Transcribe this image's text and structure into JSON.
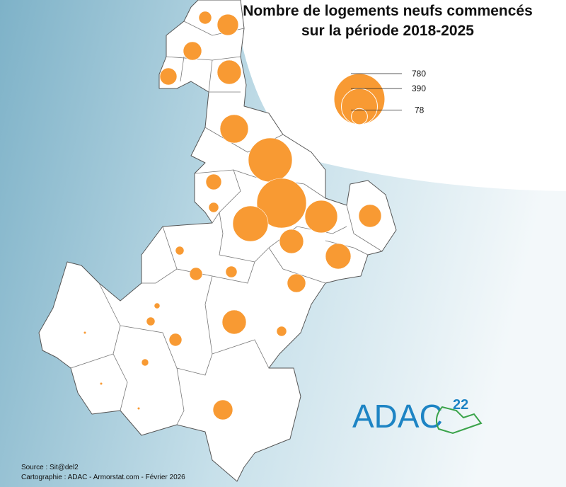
{
  "title_lines": [
    "Nombre de logements neufs commencés",
    "sur la période 2018-2025"
  ],
  "legend": {
    "values": [
      780,
      390,
      78
    ]
  },
  "circles": {
    "color": "#f89a33",
    "values": [
      49,
      135,
      102,
      87,
      174,
      241,
      578,
      73,
      30,
      737,
      376,
      318,
      154,
      174,
      195,
      22,
      49,
      39,
      102,
      10,
      22,
      174,
      49,
      30,
      2,
      15,
      2,
      118,
      2
    ]
  },
  "logo": {
    "text": "ADAC",
    "number": "22"
  },
  "source": "Source : Sit@del2",
  "credits": "Cartographie : ADAC - Armorstat.com - Février 2026"
}
